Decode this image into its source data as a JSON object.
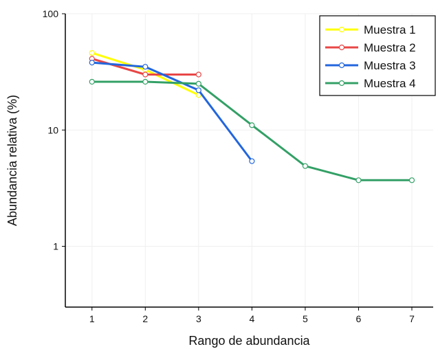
{
  "chart_data": {
    "type": "line",
    "xlabel": "Rango de abundancia",
    "ylabel": "Abundancia relativa (%)",
    "yscale": "log",
    "ylim": [
      0.3,
      100
    ],
    "xlim": [
      0.5,
      7.4
    ],
    "x_ticks": [
      1,
      2,
      3,
      4,
      5,
      6,
      7
    ],
    "y_ticks": [
      1,
      10,
      100
    ],
    "grid": true,
    "legend_position": "top-right",
    "series": [
      {
        "name": "Muestra 1",
        "color": "#ffff00",
        "x": [
          1,
          2,
          3
        ],
        "values": [
          46,
          33,
          20
        ]
      },
      {
        "name": "Muestra 2",
        "color": "#e84646",
        "x": [
          1,
          2,
          3
        ],
        "values": [
          41,
          30,
          30
        ]
      },
      {
        "name": "Muestra 3",
        "color": "#2266dd",
        "x": [
          1,
          2,
          3,
          4
        ],
        "values": [
          38,
          35,
          22,
          5.4
        ]
      },
      {
        "name": "Muestra 4",
        "color": "#33a066",
        "x": [
          1,
          2,
          3,
          4,
          5,
          6,
          7
        ],
        "values": [
          26,
          26,
          25,
          11,
          4.9,
          3.7,
          3.7
        ]
      }
    ]
  }
}
